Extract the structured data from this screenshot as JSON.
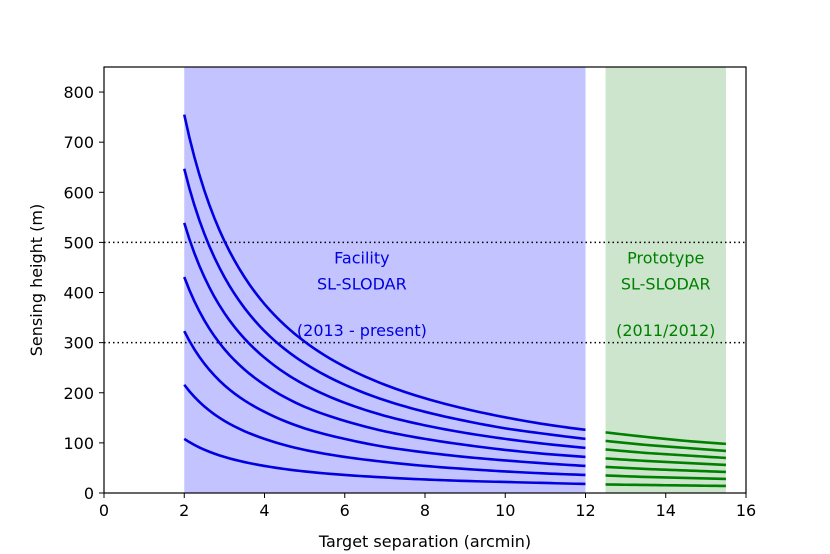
{
  "chart_data": {
    "type": "line",
    "xlabel": "Target separation (arcmin)",
    "ylabel": "Sensing height (m)",
    "xlim": [
      0,
      16
    ],
    "ylim": [
      0,
      850
    ],
    "xticks": [
      0,
      2,
      4,
      6,
      8,
      10,
      12,
      14,
      16
    ],
    "yticks": [
      0,
      100,
      200,
      300,
      400,
      500,
      600,
      700,
      800
    ],
    "reference_lines": [
      300,
      500
    ],
    "regions": [
      {
        "name": "facility",
        "x_range": [
          2,
          12
        ],
        "color": "#c3c3ff",
        "line_color": "#0000e0",
        "annotation": [
          "Facility",
          "SL-SLODAR",
          "(2013 - present)"
        ],
        "series": [
          {
            "name": "facility-1",
            "x": [
              2,
              3,
              4,
              5,
              6,
              7,
              8,
              9,
              10,
              11,
              12
            ],
            "values": [
              108,
              72,
              54,
              43,
              36,
              31,
              27,
              24,
              22,
              20,
              18
            ]
          },
          {
            "name": "facility-2",
            "x": [
              2,
              3,
              4,
              5,
              6,
              7,
              8,
              9,
              10,
              11,
              12
            ],
            "values": [
              216,
              144,
              108,
              86,
              72,
              62,
              54,
              48,
              43,
              39,
              36
            ]
          },
          {
            "name": "facility-3",
            "x": [
              2,
              3,
              4,
              5,
              6,
              7,
              8,
              9,
              10,
              11,
              12
            ],
            "values": [
              323,
              215,
              162,
              129,
              108,
              92,
              81,
              72,
              65,
              59,
              54
            ]
          },
          {
            "name": "facility-4",
            "x": [
              2,
              3,
              4,
              5,
              6,
              7,
              8,
              9,
              10,
              11,
              12
            ],
            "values": [
              431,
              287,
              216,
              172,
              144,
              123,
              108,
              96,
              86,
              78,
              72
            ]
          },
          {
            "name": "facility-5",
            "x": [
              2,
              3,
              4,
              5,
              6,
              7,
              8,
              9,
              10,
              11,
              12
            ],
            "values": [
              539,
              359,
              270,
              216,
              180,
              154,
              135,
              120,
              108,
              98,
              90
            ]
          },
          {
            "name": "facility-6",
            "x": [
              2,
              3,
              4,
              5,
              6,
              7,
              8,
              9,
              10,
              11,
              12
            ],
            "values": [
              647,
              431,
              323,
              259,
              216,
              185,
              162,
              144,
              129,
              118,
              108
            ]
          },
          {
            "name": "facility-7",
            "x": [
              2,
              3,
              4,
              5,
              6,
              7,
              8,
              9,
              10,
              11,
              12
            ],
            "values": [
              755,
              503,
              377,
              302,
              252,
              216,
              189,
              168,
              151,
              137,
              126
            ]
          }
        ]
      },
      {
        "name": "prototype",
        "x_range": [
          12.5,
          15.5
        ],
        "color": "#cce5cc",
        "line_color": "#008000",
        "annotation": [
          "Prototype",
          "SL-SLODAR",
          "(2011/2012)"
        ],
        "series": [
          {
            "name": "prototype-1",
            "x": [
              12.5,
              13.5,
              14.5,
              15.5
            ],
            "values": [
              17,
              16,
              15,
              14
            ]
          },
          {
            "name": "prototype-2",
            "x": [
              12.5,
              13.5,
              14.5,
              15.5
            ],
            "values": [
              35,
              32,
              30,
              28
            ]
          },
          {
            "name": "prototype-3",
            "x": [
              12.5,
              13.5,
              14.5,
              15.5
            ],
            "values": [
              52,
              48,
              45,
              42
            ]
          },
          {
            "name": "prototype-4",
            "x": [
              12.5,
              13.5,
              14.5,
              15.5
            ],
            "values": [
              69,
              64,
              60,
              56
            ]
          },
          {
            "name": "prototype-5",
            "x": [
              12.5,
              13.5,
              14.5,
              15.5
            ],
            "values": [
              87,
              80,
              75,
              70
            ]
          },
          {
            "name": "prototype-6",
            "x": [
              12.5,
              13.5,
              14.5,
              15.5
            ],
            "values": [
              104,
              96,
              90,
              84
            ]
          },
          {
            "name": "prototype-7",
            "x": [
              12.5,
              13.5,
              14.5,
              15.5
            ],
            "values": [
              121,
              112,
              104,
              98
            ]
          }
        ]
      }
    ]
  }
}
